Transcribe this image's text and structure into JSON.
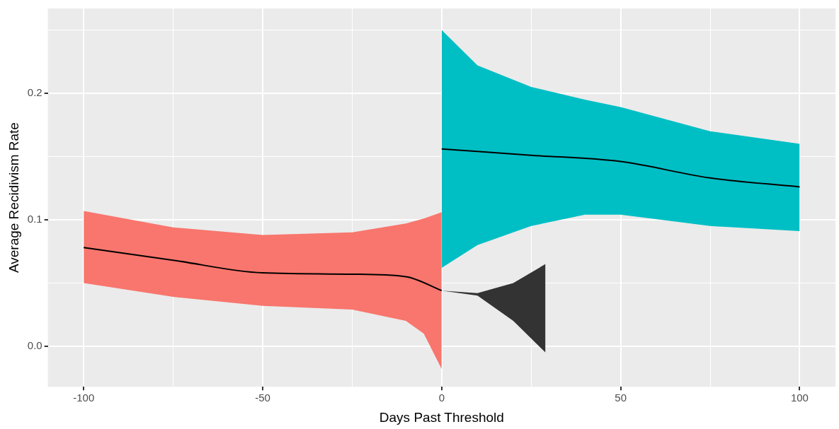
{
  "chart_data": {
    "type": "line",
    "xlabel": "Days Past Threshold",
    "ylabel": "Average Recidivism Rate",
    "xlim": [
      -110,
      110
    ],
    "ylim": [
      -0.032,
      0.267
    ],
    "xticks": [
      -100,
      {
        "value": -75,
        "label": null
      },
      -50,
      {
        "value": -25,
        "label": null
      },
      0,
      {
        "value": 25,
        "label": null
      },
      50,
      {
        "value": 75,
        "label": null
      },
      100
    ],
    "yticks": [
      {
        "value": 0,
        "label": "0.0"
      },
      {
        "value": 0.05,
        "label": null
      },
      0.1,
      {
        "value": 0.15,
        "label": null
      },
      0.2,
      {
        "value": 0.25,
        "label": null
      }
    ],
    "grid": true,
    "legend": false,
    "marker": "none",
    "line_style": "solid",
    "series": [
      {
        "type": "area",
        "color": "#f8766d",
        "x": [
          -100,
          -75,
          -50,
          -25,
          -10,
          -5,
          0
        ],
        "values": [
          null,
          null,
          null,
          null,
          null,
          null,
          null
        ],
        "lower": [
          0.05,
          0.039,
          0.032,
          0.029,
          0.02,
          0.01,
          -0.018
        ],
        "upper": [
          0.107,
          0.094,
          0.088,
          0.09,
          0.097,
          0.101,
          0.106
        ]
      },
      {
        "type": "area",
        "color": "#00bfc4",
        "x": [
          0,
          10,
          25,
          40,
          50,
          75,
          100
        ],
        "values": [
          null,
          null,
          null,
          null,
          null,
          null,
          null
        ],
        "lower": [
          0.062,
          0.08,
          0.095,
          0.104,
          0.104,
          0.095,
          0.091
        ],
        "upper": [
          0.25,
          0.222,
          0.205,
          0.195,
          0.189,
          0.17,
          0.16
        ]
      },
      {
        "type": "area",
        "color": "#333333",
        "x": [
          0,
          10,
          20,
          29
        ],
        "values": [
          null,
          null,
          null,
          null
        ],
        "lower": [
          0.044,
          0.04,
          0.02,
          -0.005
        ],
        "upper": [
          0.044,
          0.042,
          0.05,
          0.065
        ]
      },
      {
        "type": "line",
        "color": "#000000",
        "x": [
          -100,
          -75,
          -50,
          -25,
          -10,
          0
        ],
        "values": [
          0.078,
          0.068,
          0.058,
          0.057,
          0.055,
          0.044
        ]
      },
      {
        "type": "line",
        "color": "#000000",
        "x": [
          0,
          25,
          50,
          75,
          100
        ],
        "values": [
          0.156,
          0.151,
          0.146,
          0.133,
          0.126
        ]
      }
    ]
  }
}
